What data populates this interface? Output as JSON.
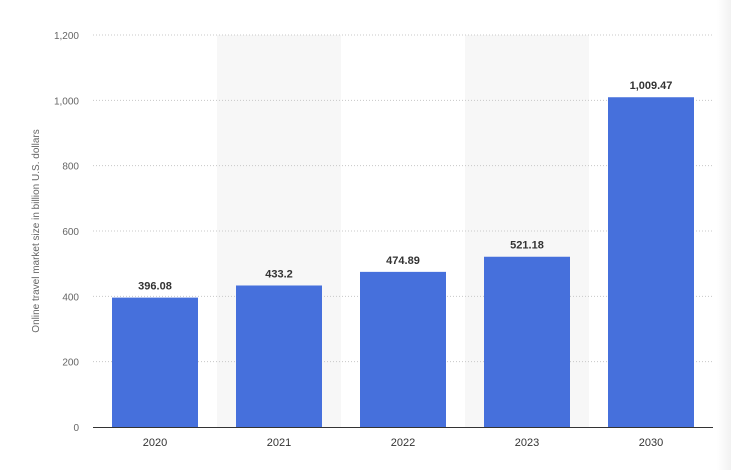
{
  "chart_data": {
    "type": "bar",
    "title": "",
    "xlabel": "",
    "ylabel": "Online travel market size in billion U.S. dollars",
    "categories": [
      "2020",
      "2021",
      "2022",
      "2023",
      "2030"
    ],
    "values": [
      396.08,
      433.2,
      474.89,
      521.18,
      1009.47
    ],
    "value_labels": [
      "396.08",
      "433.2",
      "474.89",
      "521.18",
      "1,009.47"
    ],
    "ylim": [
      0,
      1200
    ],
    "yticks": [
      0,
      200,
      400,
      600,
      800,
      1000,
      1200
    ],
    "ytick_labels": [
      "0",
      "200",
      "400",
      "600",
      "800",
      "1,000",
      "1,200"
    ],
    "grid": true,
    "legend": "none",
    "colors": {
      "bar": "#4670DC",
      "band": "#F7F7F7",
      "grid": "#C8C8C8",
      "axis": "#333333"
    }
  }
}
